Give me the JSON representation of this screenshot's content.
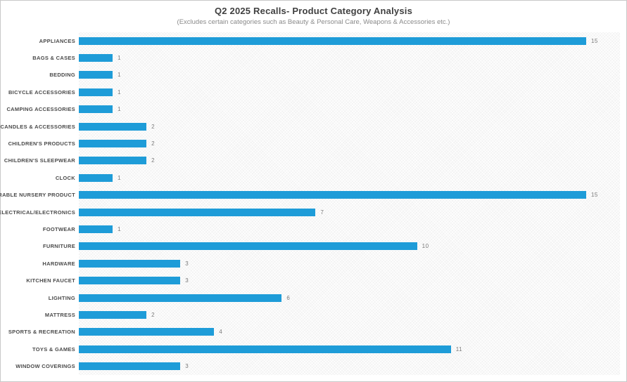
{
  "header": {
    "title": "Q2 2025 Recalls- Product Category Analysis",
    "subtitle": "(Excludes certain categories such as Beauty & Personal Care, Weapons & Accessories etc.)"
  },
  "colors": {
    "bar": "#1e9cd8",
    "title": "#3f3f3f",
    "subtitle": "#8a8a8a",
    "category_label": "#4a4a4a",
    "value_label": "#7a7a7a",
    "plot_background": "#f2f2f2",
    "page_background": "#ffffff",
    "frame_border": "#c9c9c9"
  },
  "chart_data": {
    "type": "bar",
    "orientation": "horizontal",
    "title": "Q2 2025 Recalls- Product Category Analysis",
    "subtitle": "(Excludes certain categories such as Beauty & Personal Care, Weapons & Accessories etc.)",
    "xlabel": "",
    "ylabel": "",
    "xlim": [
      0,
      16
    ],
    "grid": false,
    "legend": false,
    "value_labels_shown": true,
    "categories": [
      "APPLIANCES",
      "BAGS & CASES",
      "BEDDING",
      "BICYCLE ACCESSORIES",
      "CAMPING ACCESSORIES",
      "CANDLES & ACCESSORIES",
      "CHILDREN'S PRODUCTS",
      "CHILDREN'S SLEEPWEAR",
      "CLOCK",
      "DURABLE NURSERY PRODUCT",
      "ELECTRICAL/ELECTRONICS",
      "FOOTWEAR",
      "FURNITURE",
      "HARDWARE",
      "KITCHEN FAUCET",
      "LIGHTING",
      "MATTRESS",
      "SPORTS & RECREATION",
      "TOYS & GAMES",
      "WINDOW COVERINGS"
    ],
    "values": [
      15,
      1,
      1,
      1,
      1,
      2,
      2,
      2,
      1,
      15,
      7,
      1,
      10,
      3,
      3,
      6,
      2,
      4,
      11,
      3
    ]
  }
}
